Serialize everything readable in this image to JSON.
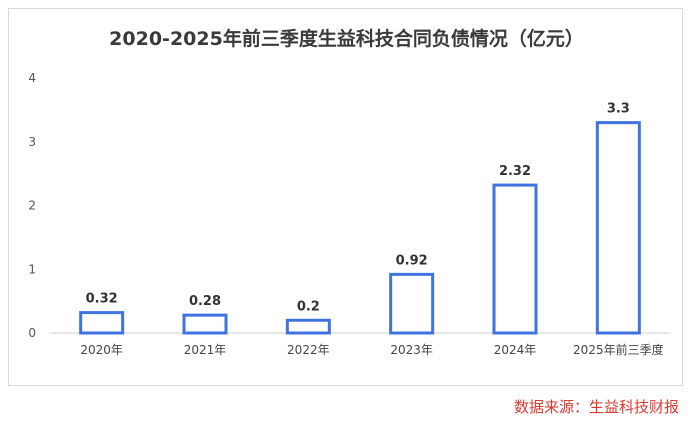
{
  "chart_data": {
    "type": "bar",
    "title": "2020-2025年前三季度生益科技合同负债情况（亿元）",
    "categories": [
      "2020年",
      "2021年",
      "2022年",
      "2023年",
      "2024年",
      "2025年前三季度"
    ],
    "values": [
      0.32,
      0.28,
      0.2,
      0.92,
      2.32,
      3.3
    ],
    "value_labels": [
      "0.32",
      "0.28",
      "0.2",
      "0.92",
      "2.32",
      "3.3"
    ],
    "y_ticks": [
      "0",
      "1",
      "2",
      "3",
      "4"
    ],
    "ylim": [
      0,
      4
    ],
    "xlabel": "",
    "ylabel": "",
    "grid": false,
    "bar_style": "outline",
    "colors": {
      "bar_stroke": "#3f74e0",
      "bar_fill": "#ffffff",
      "axis": "#d0d0d0"
    }
  },
  "source_text": "数据来源：生益科技财报"
}
